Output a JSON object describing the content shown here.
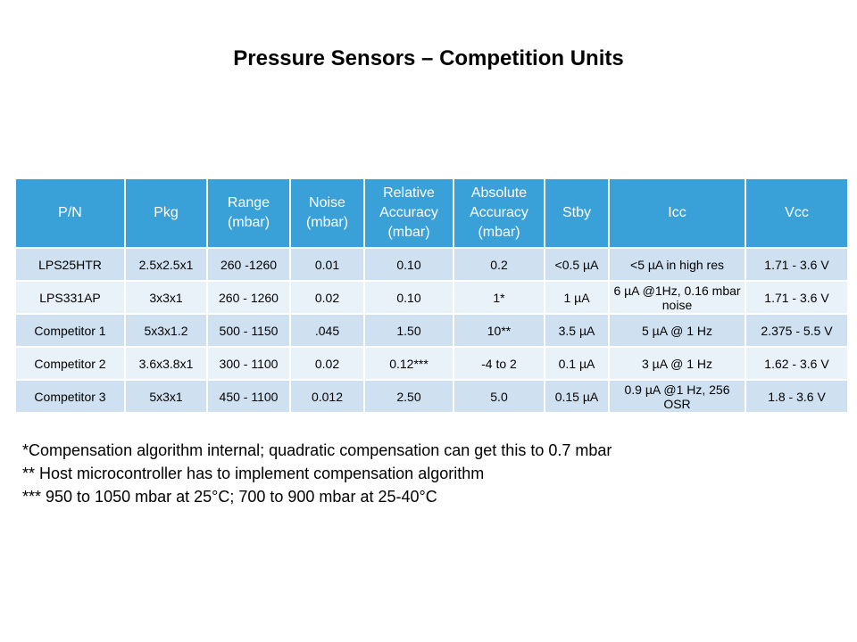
{
  "title": "Pressure Sensors – Competition Units",
  "table": {
    "headers": [
      "P/N",
      "Pkg",
      "Range (mbar)",
      "Noise (mbar)",
      "Relative Accuracy (mbar)",
      "Absolute Accuracy (mbar)",
      "Stby",
      "Icc",
      "Vcc"
    ],
    "rows": [
      [
        "LPS25HTR",
        "2.5x2.5x1",
        "260 -1260",
        "0.01",
        "0.10",
        "0.2",
        "<0.5 µA",
        "<5 µA in high res",
        "1.71 - 3.6 V"
      ],
      [
        "LPS331AP",
        "3x3x1",
        "260 - 1260",
        "0.02",
        "0.10",
        "1*",
        "1 µA",
        "6 µA @1Hz, 0.16 mbar noise",
        "1.71 - 3.6 V"
      ],
      [
        "Competitor 1",
        "5x3x1.2",
        "500 - 1150",
        ".045",
        "1.50",
        "10**",
        "3.5 µA",
        "5 µA @ 1 Hz",
        "2.375 - 5.5 V"
      ],
      [
        "Competitor 2",
        "3.6x3.8x1",
        "300 - 1100",
        "0.02",
        "0.12***",
        "-4 to 2",
        "0.1 µA",
        "3 µA @ 1 Hz",
        "1.62 - 3.6 V"
      ],
      [
        "Competitor 3",
        "5x3x1",
        "450 - 1100",
        "0.012",
        "2.50",
        "5.0",
        "0.15 µA",
        "0.9 µA @1 Hz, 256 OSR",
        "1.8 - 3.6 V"
      ]
    ]
  },
  "notes": [
    "*Compensation algorithm internal; quadratic compensation can get this to 0.7 mbar",
    "** Host microcontroller has to implement compensation algorithm",
    "*** 950 to 1050 mbar at 25°C; 700 to 900 mbar at 25-40°C"
  ],
  "colors": {
    "header_bg": "#3aa0d8",
    "row_odd_bg": "#cfe1f1",
    "row_even_bg": "#e9f1f9"
  }
}
